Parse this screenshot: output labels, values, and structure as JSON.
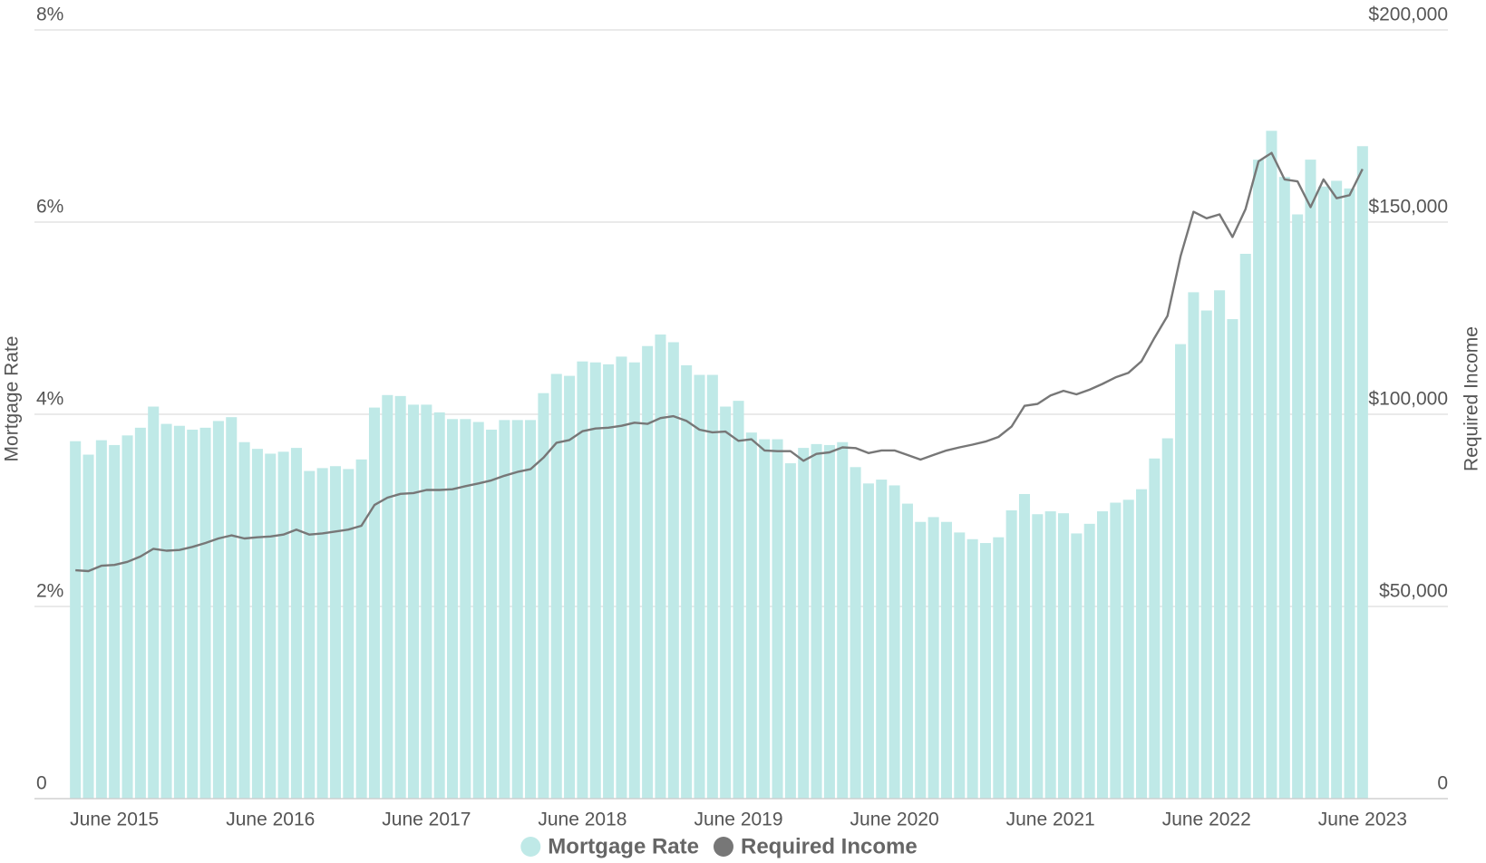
{
  "chart_data": {
    "type": "bar",
    "categories": [
      null,
      null,
      null,
      "June 2015",
      null,
      null,
      null,
      null,
      null,
      null,
      null,
      null,
      null,
      null,
      null,
      "June 2016",
      null,
      null,
      null,
      null,
      null,
      null,
      null,
      null,
      null,
      null,
      null,
      "June 2017",
      null,
      null,
      null,
      null,
      null,
      null,
      null,
      null,
      null,
      null,
      null,
      "June 2018",
      null,
      null,
      null,
      null,
      null,
      null,
      null,
      null,
      null,
      null,
      null,
      "June 2019",
      null,
      null,
      null,
      null,
      null,
      null,
      null,
      null,
      null,
      null,
      null,
      "June 2020",
      null,
      null,
      null,
      null,
      null,
      null,
      null,
      null,
      null,
      null,
      null,
      "June 2021",
      null,
      null,
      null,
      null,
      null,
      null,
      null,
      null,
      null,
      null,
      null,
      "June 2022",
      null,
      null,
      null,
      null,
      null,
      null,
      null,
      null,
      null,
      null,
      null,
      "June 2023"
    ],
    "series": [
      {
        "name": "Mortgage Rate",
        "type": "bar",
        "color": "#bfe9e7",
        "values": [
          3.72,
          3.58,
          3.73,
          3.68,
          3.78,
          3.86,
          4.08,
          3.9,
          3.88,
          3.84,
          3.86,
          3.93,
          3.97,
          3.71,
          3.64,
          3.59,
          3.61,
          3.65,
          3.41,
          3.44,
          3.46,
          3.43,
          3.53,
          4.07,
          4.2,
          4.19,
          4.1,
          4.1,
          4.02,
          3.95,
          3.95,
          3.92,
          3.84,
          3.94,
          3.94,
          3.94,
          4.22,
          4.42,
          4.4,
          4.55,
          4.54,
          4.52,
          4.6,
          4.54,
          4.71,
          4.83,
          4.75,
          4.51,
          4.41,
          4.41,
          4.08,
          4.14,
          3.81,
          3.74,
          3.74,
          3.49,
          3.65,
          3.69,
          3.68,
          3.71,
          3.45,
          3.28,
          3.32,
          3.26,
          3.07,
          2.88,
          2.93,
          2.88,
          2.77,
          2.7,
          2.66,
          2.72,
          3.0,
          3.17,
          2.96,
          2.99,
          2.97,
          2.76,
          2.86,
          2.99,
          3.08,
          3.11,
          3.22,
          3.54,
          3.75,
          4.73,
          5.27,
          5.08,
          5.29,
          4.99,
          5.67,
          6.65,
          6.95,
          6.47,
          6.08,
          6.65,
          6.37,
          6.43,
          6.35,
          6.79
        ]
      },
      {
        "name": "Required Income",
        "type": "line",
        "axis": "y2",
        "color": "#777777",
        "values": [
          59400,
          59200,
          60600,
          60800,
          61600,
          63000,
          65000,
          64500,
          64700,
          65500,
          66500,
          67700,
          68500,
          67700,
          68000,
          68200,
          68700,
          70000,
          68700,
          69000,
          69500,
          70000,
          71000,
          76400,
          78300,
          79300,
          79500,
          80300,
          80300,
          80500,
          81300,
          82000,
          82800,
          84000,
          85000,
          85700,
          88700,
          92600,
          93300,
          95600,
          96300,
          96500,
          97000,
          97800,
          97500,
          99000,
          99500,
          98300,
          96000,
          95300,
          95500,
          93100,
          93500,
          90600,
          90400,
          90400,
          87900,
          89700,
          90100,
          91400,
          91200,
          89900,
          90600,
          90600,
          89400,
          88200,
          89400,
          90600,
          91400,
          92100,
          92900,
          94100,
          96800,
          102200,
          102700,
          104900,
          106100,
          105200,
          106400,
          107900,
          109600,
          110800,
          113800,
          119900,
          125600,
          141100,
          152700,
          151000,
          152000,
          146100,
          153400,
          165800,
          168000,
          161100,
          160600,
          153900,
          161100,
          156200,
          157000,
          163800
        ]
      }
    ],
    "y_label": "Mortgage Rate",
    "y2_label": "Required Income",
    "ylim": [
      0,
      8
    ],
    "yticks": [
      0,
      {
        "value": 2,
        "label": "2%"
      },
      {
        "value": 4,
        "label": "4%"
      },
      {
        "value": 6,
        "label": "6%"
      },
      {
        "value": 8,
        "label": "8%"
      }
    ],
    "y2lim": [
      0,
      200000
    ],
    "y2ticks": [
      0,
      {
        "value": 50000,
        "label": "$50,000"
      },
      {
        "value": 100000,
        "label": "$100,000"
      },
      {
        "value": 150000,
        "label": "$150,000"
      },
      {
        "value": 200000,
        "label": "$200,000"
      }
    ],
    "grid": true,
    "legend": "bottom"
  }
}
